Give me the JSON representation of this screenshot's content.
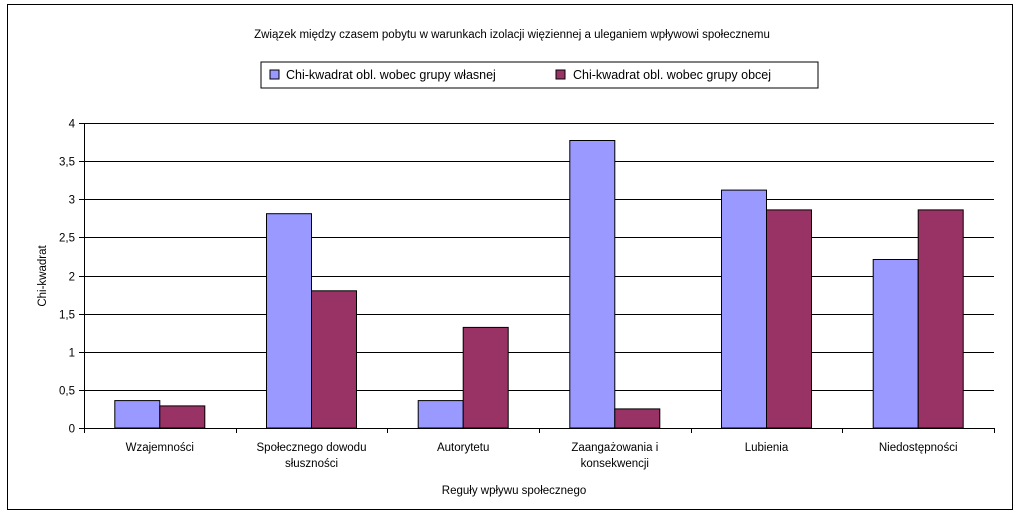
{
  "chart_data": {
    "type": "bar",
    "title": "Związek między czasem pobytu w warunkach izolacji więziennej a uleganiem wpływowi społecznemu",
    "xlabel": "Reguły wpływu społecznego",
    "ylabel": "Chi-kwadrat",
    "categories": [
      [
        "Wzajemności"
      ],
      [
        "Społecznego dowodu",
        "słuszności"
      ],
      [
        "Autorytetu"
      ],
      [
        "Zaangażowania i",
        "konsekwencji"
      ],
      [
        "Lubienia"
      ],
      [
        "Niedostępności"
      ]
    ],
    "series": [
      {
        "name": "Chi-kwadrat obl. wobec grupy własnej",
        "color": "#9999ff",
        "values": [
          0.36,
          2.81,
          0.36,
          3.77,
          3.12,
          2.21
        ]
      },
      {
        "name": "Chi-kwadrat obl. wobec grupy obcej",
        "color": "#993366",
        "values": [
          0.29,
          1.8,
          1.32,
          0.25,
          2.86,
          2.86
        ]
      }
    ],
    "ylim": [
      0,
      4
    ],
    "yticks": [
      0,
      0.5,
      1,
      1.5,
      2,
      2.5,
      3,
      3.5,
      4
    ],
    "ytick_labels": [
      "0",
      "0,5",
      "1",
      "1,5",
      "2",
      "2,5",
      "3",
      "3,5",
      "4"
    ],
    "grid": true,
    "legend_position": "top-center"
  }
}
